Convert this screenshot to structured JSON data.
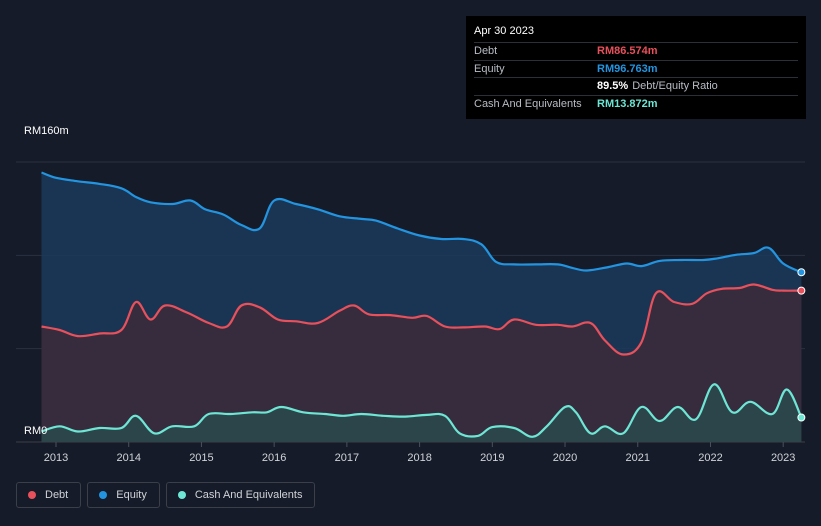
{
  "tooltip": {
    "date": "Apr 30 2023",
    "debt_label": "Debt",
    "debt_value": "RM86.574m",
    "equity_label": "Equity",
    "equity_value": "RM96.763m",
    "ratio_value": "89.5%",
    "ratio_label": "Debt/Equity Ratio",
    "cash_label": "Cash And Equivalents",
    "cash_value": "RM13.872m"
  },
  "colors": {
    "debt": "#e8505b",
    "equity": "#2394df",
    "cash": "#6ee6d4",
    "background": "#151b28"
  },
  "legend": [
    {
      "label": "Debt",
      "color": "#e8505b"
    },
    {
      "label": "Equity",
      "color": "#2394df"
    },
    {
      "label": "Cash And Equivalents",
      "color": "#6ee6d4"
    }
  ],
  "chart_data": {
    "type": "area",
    "y_top_label": "RM160m",
    "y_bottom_label": "RM0",
    "ylim": [
      0,
      160
    ],
    "xlim": [
      2012.45,
      2023.3
    ],
    "x_tick_labels": [
      "2013",
      "2014",
      "2015",
      "2016",
      "2017",
      "2018",
      "2019",
      "2020",
      "2021",
      "2022",
      "2023"
    ],
    "grid": true,
    "series": [
      {
        "name": "Equity",
        "points": [
          [
            2012.8,
            154
          ],
          [
            2013.0,
            151
          ],
          [
            2013.3,
            149
          ],
          [
            2013.6,
            147.5
          ],
          [
            2013.9,
            145
          ],
          [
            2014.1,
            140
          ],
          [
            2014.3,
            137
          ],
          [
            2014.6,
            136
          ],
          [
            2014.85,
            138
          ],
          [
            2015.05,
            133
          ],
          [
            2015.3,
            130
          ],
          [
            2015.55,
            124
          ],
          [
            2015.8,
            122
          ],
          [
            2016.0,
            138
          ],
          [
            2016.3,
            136
          ],
          [
            2016.6,
            133
          ],
          [
            2016.9,
            129
          ],
          [
            2017.2,
            127.5
          ],
          [
            2017.4,
            126.5
          ],
          [
            2017.7,
            122
          ],
          [
            2018.0,
            118
          ],
          [
            2018.3,
            116
          ],
          [
            2018.6,
            116
          ],
          [
            2018.85,
            113
          ],
          [
            2019.05,
            103
          ],
          [
            2019.3,
            101.5
          ],
          [
            2019.6,
            101.5
          ],
          [
            2019.9,
            101.5
          ],
          [
            2020.1,
            99.5
          ],
          [
            2020.3,
            98
          ],
          [
            2020.6,
            100
          ],
          [
            2020.85,
            102
          ],
          [
            2021.05,
            100.5
          ],
          [
            2021.3,
            103.5
          ],
          [
            2021.6,
            104
          ],
          [
            2021.9,
            104
          ],
          [
            2022.1,
            105
          ],
          [
            2022.35,
            107
          ],
          [
            2022.6,
            108
          ],
          [
            2022.8,
            111
          ],
          [
            2023.0,
            102
          ],
          [
            2023.25,
            97
          ]
        ]
      },
      {
        "name": "Debt",
        "points": [
          [
            2012.8,
            66
          ],
          [
            2013.05,
            64
          ],
          [
            2013.3,
            60.5
          ],
          [
            2013.6,
            62
          ],
          [
            2013.9,
            64
          ],
          [
            2014.1,
            80
          ],
          [
            2014.3,
            70
          ],
          [
            2014.5,
            78
          ],
          [
            2014.8,
            74
          ],
          [
            2015.1,
            68
          ],
          [
            2015.35,
            66
          ],
          [
            2015.55,
            78
          ],
          [
            2015.8,
            77
          ],
          [
            2016.05,
            70
          ],
          [
            2016.3,
            69
          ],
          [
            2016.6,
            68
          ],
          [
            2016.9,
            75
          ],
          [
            2017.1,
            78
          ],
          [
            2017.3,
            73
          ],
          [
            2017.6,
            72.5
          ],
          [
            2017.9,
            71
          ],
          [
            2018.1,
            72
          ],
          [
            2018.35,
            66
          ],
          [
            2018.6,
            65.5
          ],
          [
            2018.9,
            66
          ],
          [
            2019.1,
            64.5
          ],
          [
            2019.3,
            70
          ],
          [
            2019.6,
            67
          ],
          [
            2019.9,
            67
          ],
          [
            2020.1,
            66
          ],
          [
            2020.35,
            68
          ],
          [
            2020.55,
            58
          ],
          [
            2020.8,
            50
          ],
          [
            2021.05,
            57
          ],
          [
            2021.25,
            85
          ],
          [
            2021.5,
            80
          ],
          [
            2021.75,
            79
          ],
          [
            2021.95,
            85
          ],
          [
            2022.15,
            87.5
          ],
          [
            2022.4,
            88
          ],
          [
            2022.6,
            90
          ],
          [
            2022.85,
            87
          ],
          [
            2023.0,
            86.5
          ],
          [
            2023.25,
            86.5
          ]
        ]
      },
      {
        "name": "Cash And Equivalents",
        "points": [
          [
            2012.8,
            6
          ],
          [
            2013.05,
            9
          ],
          [
            2013.3,
            6
          ],
          [
            2013.6,
            8
          ],
          [
            2013.9,
            8
          ],
          [
            2014.1,
            15
          ],
          [
            2014.35,
            5
          ],
          [
            2014.6,
            9
          ],
          [
            2014.9,
            9
          ],
          [
            2015.1,
            16
          ],
          [
            2015.4,
            16
          ],
          [
            2015.7,
            17
          ],
          [
            2015.9,
            17
          ],
          [
            2016.1,
            20
          ],
          [
            2016.4,
            17
          ],
          [
            2016.7,
            16
          ],
          [
            2016.95,
            15
          ],
          [
            2017.2,
            16
          ],
          [
            2017.5,
            15
          ],
          [
            2017.8,
            14.5
          ],
          [
            2018.1,
            15.5
          ],
          [
            2018.35,
            15
          ],
          [
            2018.55,
            5
          ],
          [
            2018.8,
            3.5
          ],
          [
            2019.0,
            8.5
          ],
          [
            2019.3,
            8
          ],
          [
            2019.55,
            3
          ],
          [
            2019.75,
            9
          ],
          [
            2020.0,
            20
          ],
          [
            2020.15,
            17
          ],
          [
            2020.35,
            5
          ],
          [
            2020.55,
            9
          ],
          [
            2020.8,
            5
          ],
          [
            2021.05,
            20
          ],
          [
            2021.3,
            12
          ],
          [
            2021.55,
            20
          ],
          [
            2021.8,
            13
          ],
          [
            2022.05,
            33
          ],
          [
            2022.3,
            17
          ],
          [
            2022.55,
            23
          ],
          [
            2022.85,
            16
          ],
          [
            2023.05,
            30
          ],
          [
            2023.25,
            14
          ]
        ]
      }
    ]
  }
}
